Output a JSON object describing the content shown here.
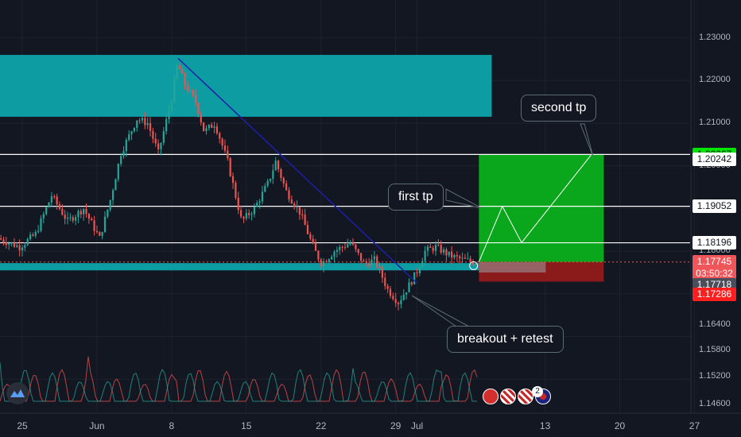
{
  "chart_data": {
    "type": "candlestick",
    "instrument_note": "",
    "y_axis": {
      "range": [
        1.1425,
        1.2345
      ],
      "ticks": [
        "1.23000",
        "1.22000",
        "1.21000",
        "1.20000",
        "1.19000",
        "1.18000",
        "1.17000",
        "1.16400",
        "1.15800",
        "1.15200",
        "1.14600"
      ]
    },
    "x_axis": {
      "ticks": [
        {
          "label": "25",
          "day": 0
        },
        {
          "label": "Jun",
          "day": 7
        },
        {
          "label": "8",
          "day": 14
        },
        {
          "label": "15",
          "day": 21
        },
        {
          "label": "22",
          "day": 28
        },
        {
          "label": "29",
          "day": 35
        },
        {
          "label": "Jul",
          "day": 37
        },
        {
          "label": "13",
          "day": 49
        },
        {
          "label": "20",
          "day": 56
        },
        {
          "label": "27",
          "day": 63
        }
      ]
    },
    "price_path": [
      {
        "day": -2,
        "price": 1.183
      },
      {
        "day": 0,
        "price": 1.181
      },
      {
        "day": 1.5,
        "price": 1.184
      },
      {
        "day": 3,
        "price": 1.193
      },
      {
        "day": 4.5,
        "price": 1.187
      },
      {
        "day": 6,
        "price": 1.19
      },
      {
        "day": 7.5,
        "price": 1.183
      },
      {
        "day": 8.5,
        "price": 1.192
      },
      {
        "day": 9.5,
        "price": 1.203
      },
      {
        "day": 11,
        "price": 1.211
      },
      {
        "day": 12,
        "price": 1.21
      },
      {
        "day": 13,
        "price": 1.203
      },
      {
        "day": 14.2,
        "price": 1.215
      },
      {
        "day": 14.8,
        "price": 1.224
      },
      {
        "day": 15.5,
        "price": 1.219
      },
      {
        "day": 16.5,
        "price": 1.215
      },
      {
        "day": 17.3,
        "price": 1.208
      },
      {
        "day": 18.3,
        "price": 1.21
      },
      {
        "day": 19.5,
        "price": 1.201
      },
      {
        "day": 20.8,
        "price": 1.187
      },
      {
        "day": 22,
        "price": 1.19
      },
      {
        "day": 23.3,
        "price": 1.196
      },
      {
        "day": 24,
        "price": 1.201
      },
      {
        "day": 25,
        "price": 1.194
      },
      {
        "day": 26.3,
        "price": 1.189
      },
      {
        "day": 27.5,
        "price": 1.181
      },
      {
        "day": 28.3,
        "price": 1.177
      },
      {
        "day": 29.5,
        "price": 1.18
      },
      {
        "day": 31,
        "price": 1.182
      },
      {
        "day": 32.3,
        "price": 1.177
      },
      {
        "day": 33.3,
        "price": 1.178
      },
      {
        "day": 34.5,
        "price": 1.171
      },
      {
        "day": 35.5,
        "price": 1.168
      },
      {
        "day": 36.5,
        "price": 1.172
      },
      {
        "day": 37.2,
        "price": 1.175
      },
      {
        "day": 38,
        "price": 1.18
      },
      {
        "day": 39,
        "price": 1.181
      },
      {
        "day": 40.3,
        "price": 1.179
      },
      {
        "day": 41.5,
        "price": 1.178
      },
      {
        "day": 42.5,
        "price": 1.1775
      }
    ],
    "horizontal_levels": [
      1.20267,
      1.19052,
      1.18196
    ],
    "current_price_line": 1.17745,
    "zones": [
      {
        "name": "resistance",
        "from_day": -3,
        "to_day": 44,
        "low": 1.2115,
        "high": 1.226,
        "color": "#0e9ca3"
      },
      {
        "name": "support",
        "from_day": -3,
        "to_day": 42.8,
        "low": 1.1755,
        "high": 1.1772,
        "color": "#0e9ca3"
      },
      {
        "name": "target",
        "from_day": 42.8,
        "to_day": 54.5,
        "low": 1.17745,
        "high": 1.20267,
        "color": "#0aa61b"
      },
      {
        "name": "stop",
        "from_day": 42.8,
        "to_day": 54.5,
        "low": 1.17286,
        "high": 1.17745,
        "color": "#8b1a1a"
      }
    ],
    "trendline": [
      {
        "day": 14.6,
        "price": 1.2252
      },
      {
        "day": 37,
        "price": 1.1725
      }
    ],
    "projection_path": [
      {
        "day": 42.8,
        "price": 1.1775
      },
      {
        "day": 45,
        "price": 1.1905
      },
      {
        "day": 46.8,
        "price": 1.182
      },
      {
        "day": 53.3,
        "price": 1.2025
      }
    ],
    "price_labels": [
      {
        "text": "1.20267",
        "price": 1.20267,
        "bg": "#00e600",
        "fg": "#131722"
      },
      {
        "text": "1.20242",
        "price": 1.2016,
        "bg": "#ffffff",
        "fg": "#131722"
      },
      {
        "text": "1.19052",
        "price": 1.19052,
        "bg": "#ffffff",
        "fg": "#131722"
      },
      {
        "text": "1.18196",
        "price": 1.18196,
        "bg": "#ffffff",
        "fg": "#131722"
      },
      {
        "text": "1.17745",
        "price": 1.17745,
        "bg": "#f0555a",
        "fg": "#ffffff"
      },
      {
        "text": "03:50:32",
        "price": 1.1748,
        "bg": "#f0555a",
        "fg": "#ffffff"
      },
      {
        "text": "1.17718",
        "price": 1.1721,
        "bg": "#4a4e5a",
        "fg": "#ffffff"
      },
      {
        "text": "1.17286",
        "price": 1.1699,
        "bg": "#ff1f1f",
        "fg": "#ffffff"
      }
    ],
    "annotations": [
      {
        "text": "second tp"
      },
      {
        "text": "first tp"
      },
      {
        "text": "breakout + retest"
      }
    ],
    "colors": {
      "background": "#131722",
      "up_candle": "#26a69a",
      "down_candle": "#ef5350",
      "trendline": "#1e1ea8",
      "level_line": "#ffffff",
      "current_price_line": "#ef5350"
    },
    "volume_indicator": {
      "type": "oscillating",
      "colors": [
        "#ef5350",
        "#26a69a"
      ]
    },
    "badge_count": "2"
  }
}
